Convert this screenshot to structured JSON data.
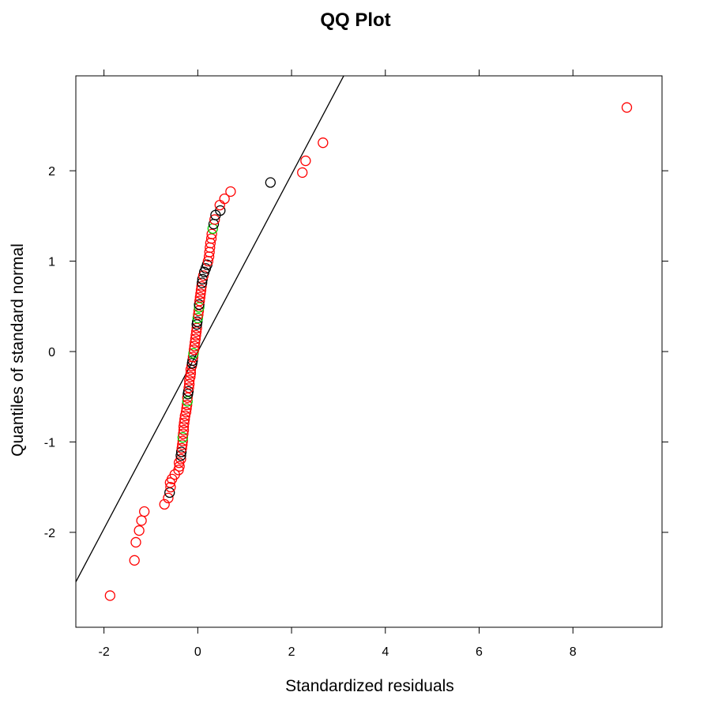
{
  "chart_data": {
    "type": "scatter",
    "title": "QQ Plot",
    "xlabel": "Standardized residuals",
    "ylabel": "Quantiles of standard normal",
    "xlim": [
      -2.6,
      9.9
    ],
    "ylim": [
      -3.05,
      3.05
    ],
    "xticks": [
      -2,
      0,
      2,
      4,
      6,
      8
    ],
    "yticks": [
      -2,
      -1,
      0,
      1,
      2
    ],
    "grid": false,
    "reference_line": {
      "intercept": 0.0,
      "slope": 0.98
    },
    "colors": {
      "black": "#000000",
      "red": "#ff0000",
      "green": "#00cc00"
    },
    "points": [
      {
        "x": -1.87,
        "y": -2.7,
        "c": "red"
      },
      {
        "x": -1.35,
        "y": -2.31,
        "c": "red"
      },
      {
        "x": -1.32,
        "y": -2.11,
        "c": "red"
      },
      {
        "x": -1.25,
        "y": -1.98,
        "c": "red"
      },
      {
        "x": -1.2,
        "y": -1.87,
        "c": "red"
      },
      {
        "x": -1.14,
        "y": -1.77,
        "c": "red"
      },
      {
        "x": -0.71,
        "y": -1.69,
        "c": "red"
      },
      {
        "x": -0.63,
        "y": -1.62,
        "c": "red"
      },
      {
        "x": -0.6,
        "y": -1.56,
        "c": "black"
      },
      {
        "x": -0.58,
        "y": -1.5,
        "c": "red"
      },
      {
        "x": -0.59,
        "y": -1.45,
        "c": "red"
      },
      {
        "x": -0.55,
        "y": -1.41,
        "c": "red"
      },
      {
        "x": -0.49,
        "y": -1.36,
        "c": "red"
      },
      {
        "x": -0.41,
        "y": -1.31,
        "c": "red"
      },
      {
        "x": -0.39,
        "y": -1.27,
        "c": "red"
      },
      {
        "x": -0.4,
        "y": -1.23,
        "c": "red"
      },
      {
        "x": -0.36,
        "y": -1.19,
        "c": "red"
      },
      {
        "x": -0.36,
        "y": -1.15,
        "c": "black"
      },
      {
        "x": -0.35,
        "y": -1.11,
        "c": "black"
      },
      {
        "x": -0.34,
        "y": -1.07,
        "c": "red"
      },
      {
        "x": -0.33,
        "y": -1.03,
        "c": "red"
      },
      {
        "x": -0.32,
        "y": -0.99,
        "c": "red"
      },
      {
        "x": -0.32,
        "y": -0.95,
        "c": "green"
      },
      {
        "x": -0.31,
        "y": -0.91,
        "c": "red"
      },
      {
        "x": -0.3,
        "y": -0.87,
        "c": "red"
      },
      {
        "x": -0.3,
        "y": -0.83,
        "c": "red"
      },
      {
        "x": -0.29,
        "y": -0.79,
        "c": "red"
      },
      {
        "x": -0.28,
        "y": -0.75,
        "c": "red"
      },
      {
        "x": -0.27,
        "y": -0.71,
        "c": "red"
      },
      {
        "x": -0.25,
        "y": -0.67,
        "c": "red"
      },
      {
        "x": -0.24,
        "y": -0.63,
        "c": "red"
      },
      {
        "x": -0.23,
        "y": -0.59,
        "c": "red"
      },
      {
        "x": -0.22,
        "y": -0.55,
        "c": "green"
      },
      {
        "x": -0.22,
        "y": -0.51,
        "c": "red"
      },
      {
        "x": -0.21,
        "y": -0.47,
        "c": "black"
      },
      {
        "x": -0.2,
        "y": -0.44,
        "c": "black"
      },
      {
        "x": -0.19,
        "y": -0.4,
        "c": "red"
      },
      {
        "x": -0.18,
        "y": -0.36,
        "c": "red"
      },
      {
        "x": -0.18,
        "y": -0.32,
        "c": "red"
      },
      {
        "x": -0.16,
        "y": -0.28,
        "c": "red"
      },
      {
        "x": -0.15,
        "y": -0.24,
        "c": "red"
      },
      {
        "x": -0.15,
        "y": -0.2,
        "c": "red"
      },
      {
        "x": -0.13,
        "y": -0.16,
        "c": "red"
      },
      {
        "x": -0.12,
        "y": -0.13,
        "c": "black"
      },
      {
        "x": -0.11,
        "y": -0.1,
        "c": "black"
      },
      {
        "x": -0.1,
        "y": -0.06,
        "c": "red"
      },
      {
        "x": -0.09,
        "y": -0.02,
        "c": "green"
      },
      {
        "x": -0.08,
        "y": 0.02,
        "c": "red"
      },
      {
        "x": -0.07,
        "y": 0.06,
        "c": "red"
      },
      {
        "x": -0.06,
        "y": 0.1,
        "c": "red"
      },
      {
        "x": -0.05,
        "y": 0.14,
        "c": "red"
      },
      {
        "x": -0.04,
        "y": 0.18,
        "c": "red"
      },
      {
        "x": -0.03,
        "y": 0.22,
        "c": "red"
      },
      {
        "x": -0.02,
        "y": 0.26,
        "c": "red"
      },
      {
        "x": -0.02,
        "y": 0.3,
        "c": "black"
      },
      {
        "x": -0.01,
        "y": 0.33,
        "c": "black"
      },
      {
        "x": 0.0,
        "y": 0.37,
        "c": "green"
      },
      {
        "x": 0.01,
        "y": 0.41,
        "c": "red"
      },
      {
        "x": 0.02,
        "y": 0.45,
        "c": "red"
      },
      {
        "x": 0.03,
        "y": 0.49,
        "c": "green"
      },
      {
        "x": 0.03,
        "y": 0.52,
        "c": "black"
      },
      {
        "x": 0.04,
        "y": 0.56,
        "c": "red"
      },
      {
        "x": 0.05,
        "y": 0.6,
        "c": "red"
      },
      {
        "x": 0.06,
        "y": 0.64,
        "c": "red"
      },
      {
        "x": 0.07,
        "y": 0.68,
        "c": "red"
      },
      {
        "x": 0.08,
        "y": 0.72,
        "c": "red"
      },
      {
        "x": 0.09,
        "y": 0.76,
        "c": "black"
      },
      {
        "x": 0.1,
        "y": 0.8,
        "c": "black"
      },
      {
        "x": 0.12,
        "y": 0.84,
        "c": "red"
      },
      {
        "x": 0.14,
        "y": 0.88,
        "c": "black"
      },
      {
        "x": 0.17,
        "y": 0.92,
        "c": "black"
      },
      {
        "x": 0.2,
        "y": 0.96,
        "c": "black"
      },
      {
        "x": 0.22,
        "y": 1.0,
        "c": "red"
      },
      {
        "x": 0.24,
        "y": 1.05,
        "c": "red"
      },
      {
        "x": 0.25,
        "y": 1.1,
        "c": "red"
      },
      {
        "x": 0.26,
        "y": 1.15,
        "c": "red"
      },
      {
        "x": 0.27,
        "y": 1.2,
        "c": "red"
      },
      {
        "x": 0.29,
        "y": 1.25,
        "c": "red"
      },
      {
        "x": 0.3,
        "y": 1.3,
        "c": "red"
      },
      {
        "x": 0.32,
        "y": 1.36,
        "c": "green"
      },
      {
        "x": 0.34,
        "y": 1.41,
        "c": "black"
      },
      {
        "x": 0.36,
        "y": 1.46,
        "c": "red"
      },
      {
        "x": 0.38,
        "y": 1.51,
        "c": "black"
      },
      {
        "x": 0.48,
        "y": 1.56,
        "c": "black"
      },
      {
        "x": 0.47,
        "y": 1.62,
        "c": "red"
      },
      {
        "x": 0.57,
        "y": 1.69,
        "c": "red"
      },
      {
        "x": 0.7,
        "y": 1.77,
        "c": "red"
      },
      {
        "x": 1.55,
        "y": 1.87,
        "c": "black"
      },
      {
        "x": 2.23,
        "y": 1.98,
        "c": "red"
      },
      {
        "x": 2.3,
        "y": 2.11,
        "c": "red"
      },
      {
        "x": 2.67,
        "y": 2.31,
        "c": "red"
      },
      {
        "x": 9.15,
        "y": 2.7,
        "c": "red"
      }
    ]
  }
}
